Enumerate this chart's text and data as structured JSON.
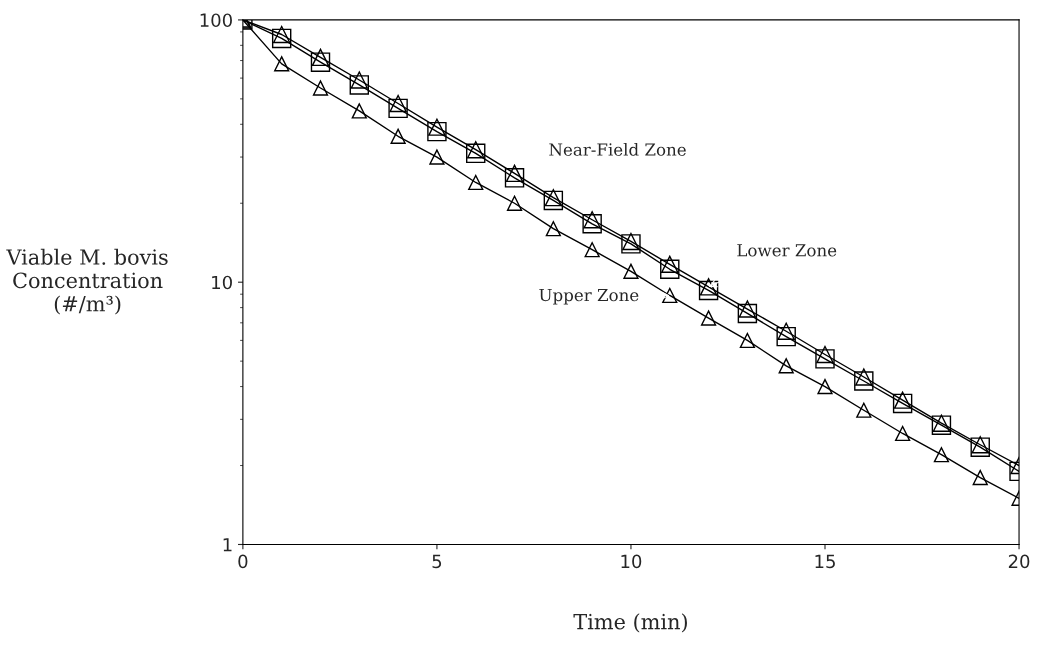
{
  "chart_data": {
    "type": "line",
    "xlabel": "Time (min)",
    "ylabel": "Viable M. bovis\nConcentration\n(#/m³)",
    "x": [
      0,
      1,
      2,
      3,
      4,
      5,
      6,
      7,
      8,
      9,
      10,
      11,
      12,
      13,
      14,
      15,
      16,
      17,
      18,
      19,
      20
    ],
    "series": [
      {
        "color": "#000000",
        "marker": "square",
        "values": [
          100,
          85,
          69,
          56.5,
          46,
          37.5,
          31,
          25,
          20.5,
          16.7,
          14,
          11.2,
          9.3,
          7.6,
          6.2,
          5.1,
          4.2,
          3.45,
          2.85,
          2.35,
          1.9
        ]
      },
      {
        "color": "#000000",
        "marker": "triangle",
        "values": [
          100,
          88,
          72,
          59,
          48,
          39,
          32,
          26,
          21,
          17.3,
          14.3,
          11.7,
          9.6,
          7.9,
          6.5,
          5.3,
          4.35,
          3.55,
          2.9,
          2.4,
          2.0
        ]
      },
      {
        "color": "#000000",
        "marker": "triangle",
        "values": [
          100,
          68,
          55,
          45,
          36,
          30,
          24,
          20,
          16,
          13.3,
          11,
          8.9,
          7.3,
          6,
          4.8,
          4,
          3.25,
          2.65,
          2.2,
          1.8,
          1.5
        ]
      }
    ],
    "annotations": [
      {
        "text": "Near-Field Zone",
        "x": 7.3,
        "y": 25
      },
      {
        "text": "Lower Zone",
        "x": 12,
        "y": 9.6
      },
      {
        "text": "Upper Zone",
        "x": 11,
        "y": 8.9
      }
    ],
    "log": "y",
    "xlim": [
      0,
      20
    ],
    "ylim": [
      1,
      100
    ],
    "xticks": [
      0,
      5,
      10,
      15,
      20
    ],
    "yticks": [
      1,
      10,
      100
    ],
    "grid": false,
    "legend": false
  }
}
